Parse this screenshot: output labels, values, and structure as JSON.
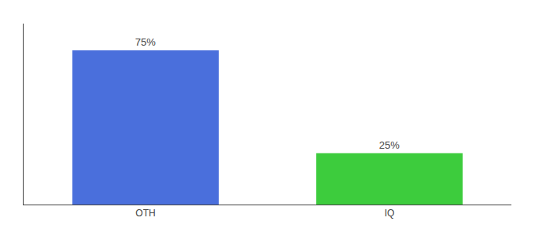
{
  "chart_data": {
    "type": "bar",
    "categories": [
      "OTH",
      "IQ"
    ],
    "values": [
      75,
      25
    ],
    "colors": [
      "#4a6fdc",
      "#3dcc3d"
    ],
    "value_labels": [
      "75%",
      "25%"
    ],
    "data_labels": true,
    "ylim": [
      0,
      88
    ],
    "grid": false,
    "tick_labels": "x"
  }
}
